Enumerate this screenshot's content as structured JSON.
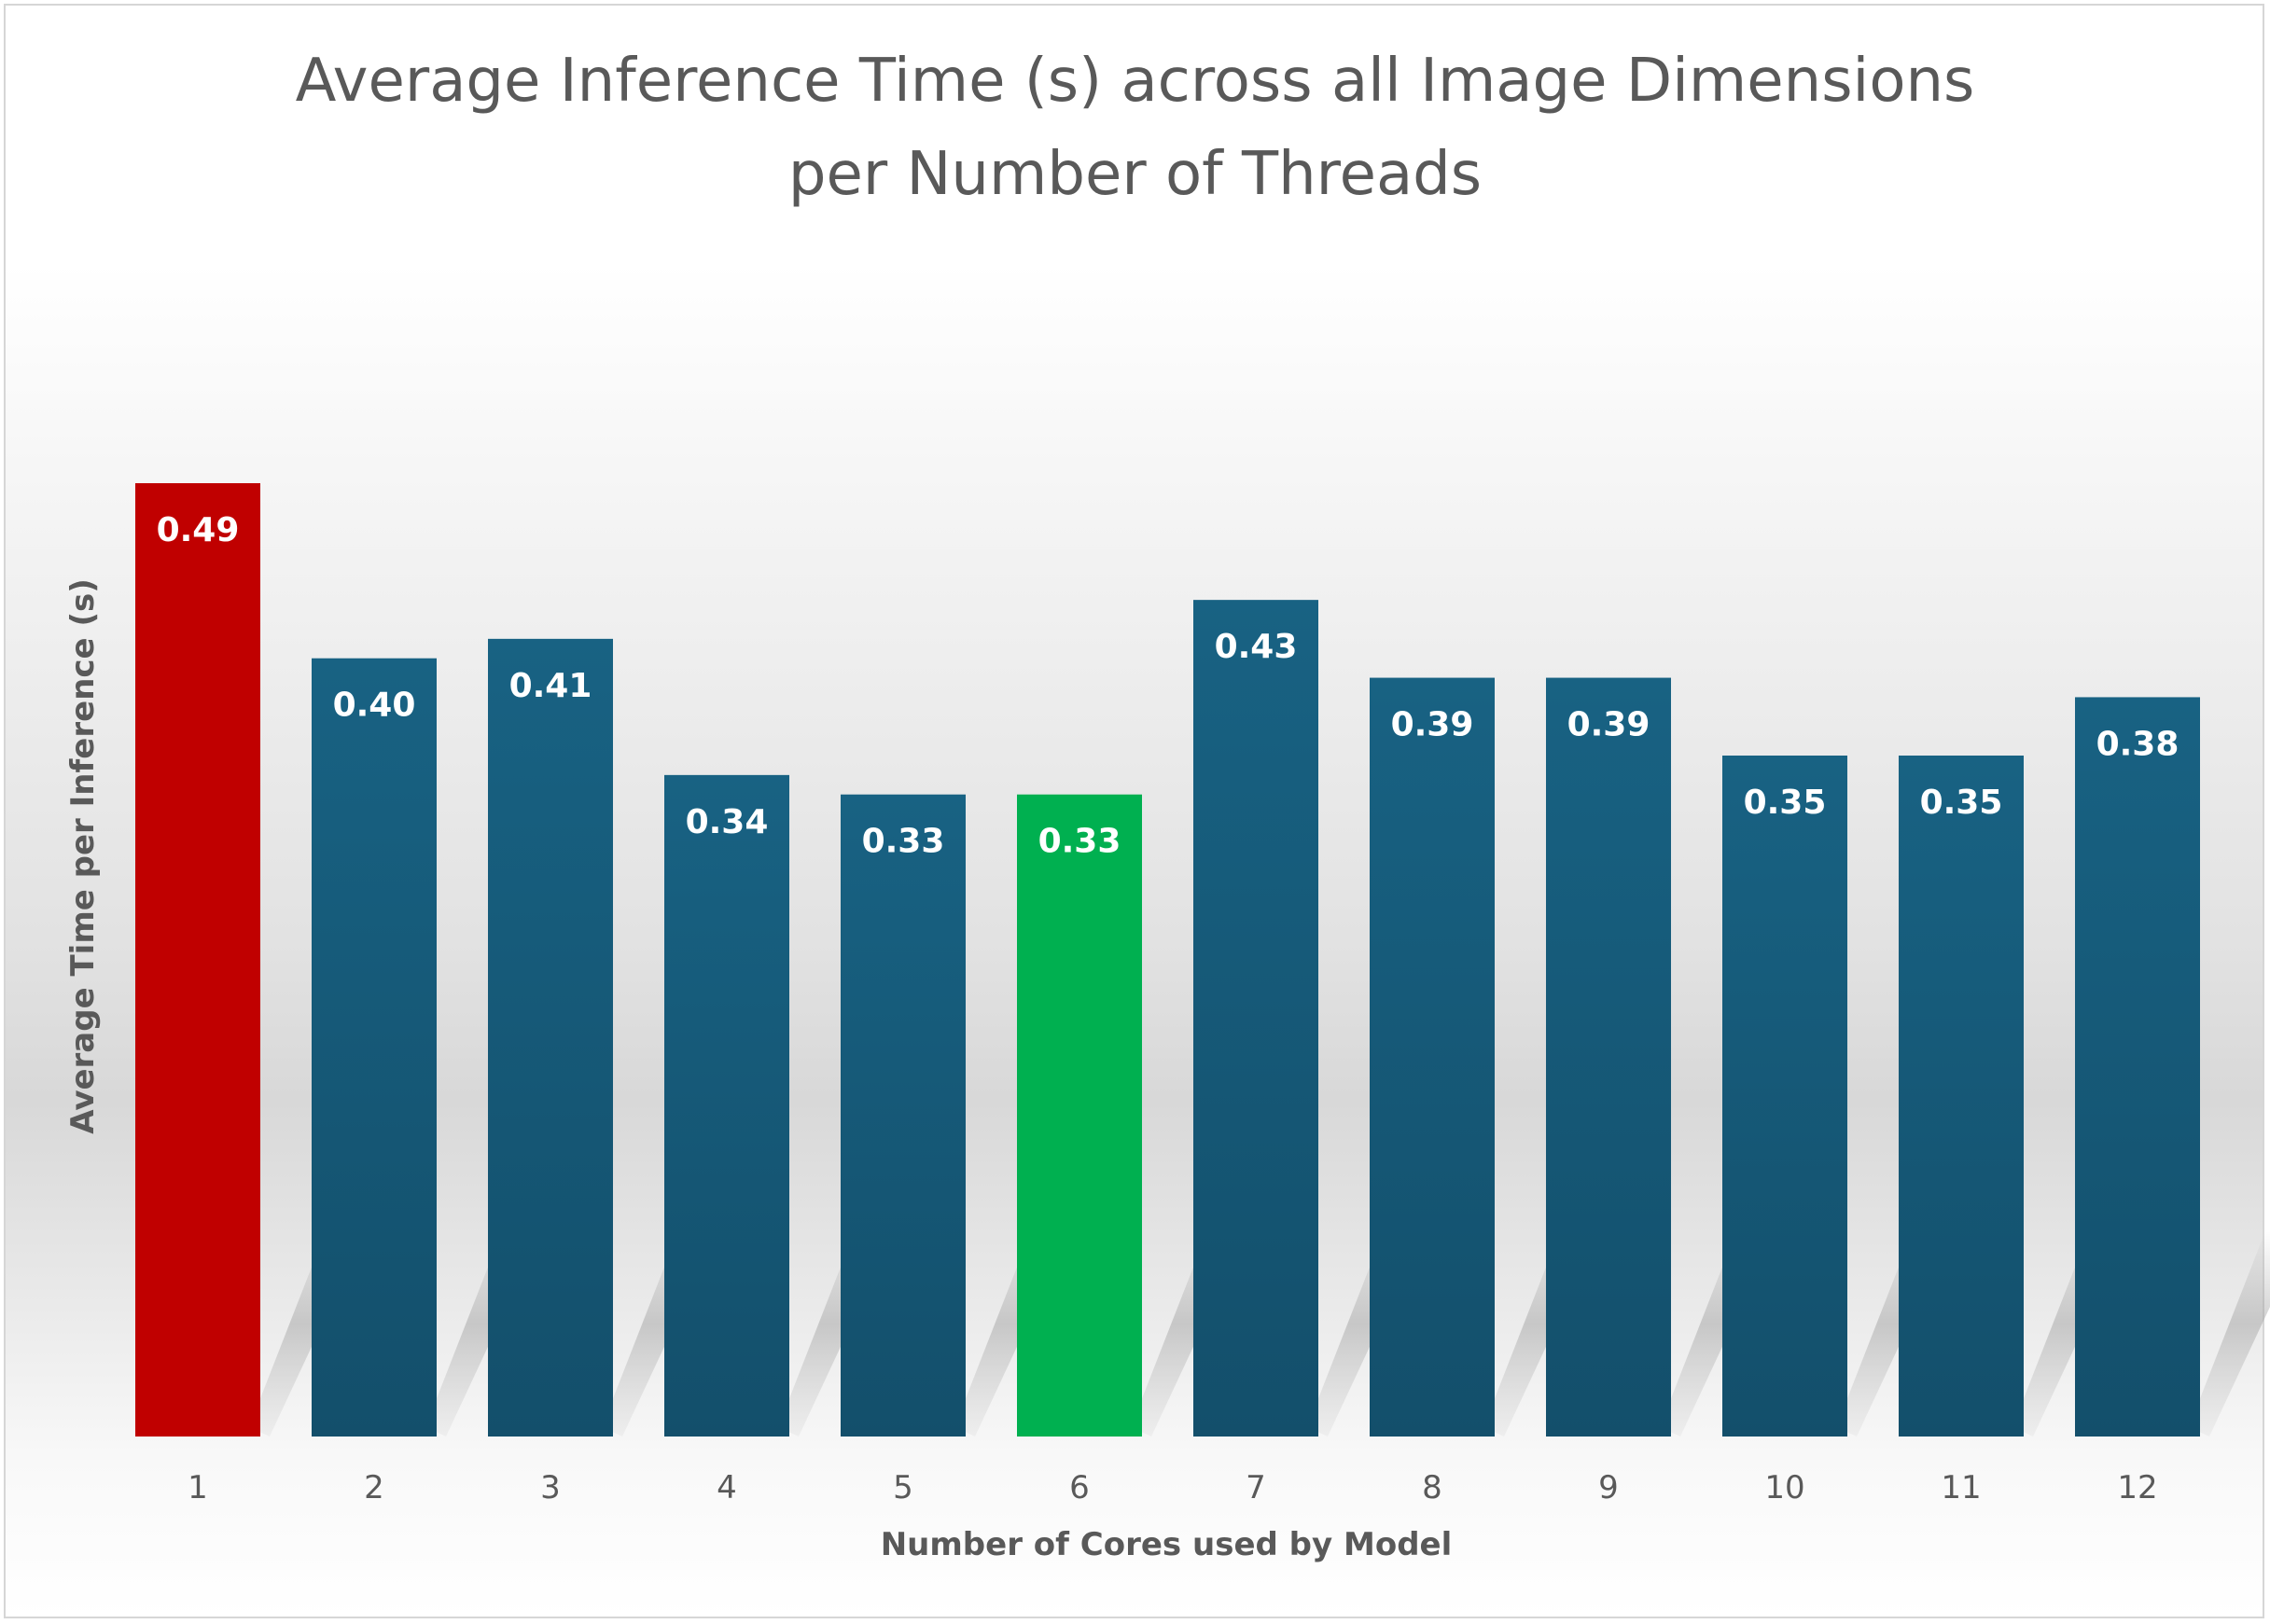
{
  "chart_data": {
    "type": "bar",
    "title": "Average Inference Time (s) across all Image Dimensions per Number of Threads",
    "title_lines": [
      "Average Inference Time (s) across all Image Dimensions",
      "per Number of Threads"
    ],
    "xlabel": "Number of Cores used by Model",
    "ylabel": "Average Time per Inference (s)",
    "categories": [
      "1",
      "2",
      "3",
      "4",
      "5",
      "6",
      "7",
      "8",
      "9",
      "10",
      "11",
      "12"
    ],
    "values": [
      0.49,
      0.4,
      0.41,
      0.34,
      0.33,
      0.33,
      0.43,
      0.39,
      0.39,
      0.35,
      0.35,
      0.38
    ],
    "data_labels": [
      "0.49",
      "0.40",
      "0.41",
      "0.34",
      "0.33",
      "0.33",
      "0.43",
      "0.39",
      "0.39",
      "0.35",
      "0.35",
      "0.38"
    ],
    "ylim": [
      0,
      0.6
    ],
    "grid": false,
    "legend": "none",
    "colors": {
      "default_bar": "#175E82",
      "max_bar": "#C00000",
      "min_bar": "#00B050",
      "label_default": "#ffffff",
      "label_min": "#ffffff"
    },
    "bar_colors": [
      "#C00000",
      "#175E82",
      "#175E82",
      "#175E82",
      "#175E82",
      "#00B050",
      "#175E82",
      "#175E82",
      "#175E82",
      "#175E82",
      "#175E82",
      "#175E82"
    ]
  }
}
